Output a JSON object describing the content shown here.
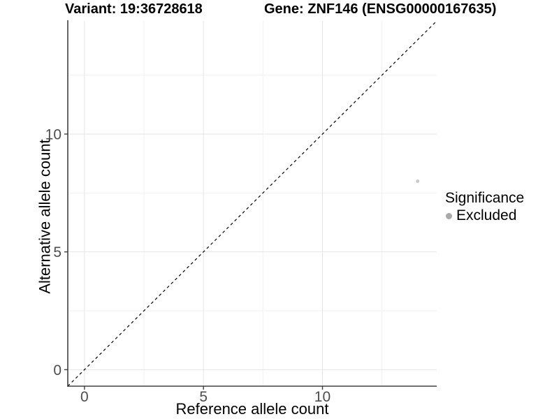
{
  "header": {
    "variant_title": "Variant: 19:36728618",
    "gene_title": "Gene: ZNF146 (ENSG00000167635)"
  },
  "chart_data": {
    "type": "scatter",
    "title": "Variant: 19:36728618   Gene: ZNF146 (ENSG00000167635)",
    "xlabel": "Reference allele count",
    "ylabel": "Alternative allele count",
    "xlim": [
      -0.7,
      14.8
    ],
    "ylim": [
      -0.7,
      14.8
    ],
    "xticks": [
      0,
      5,
      10
    ],
    "yticks": [
      0,
      5,
      10
    ],
    "minor_xticks": [
      2.5,
      7.5,
      12.5
    ],
    "minor_yticks": [
      2.5,
      7.5,
      12.5
    ],
    "grid": true,
    "points": [
      {
        "x": 14,
        "y": 8,
        "series": "Excluded"
      }
    ],
    "reference_line": {
      "kind": "identity",
      "style": "dashed"
    },
    "legend": {
      "title": "Significance",
      "position": "right",
      "items": [
        {
          "label": "Excluded",
          "color": "#a9a9a9",
          "marker": "circle"
        }
      ]
    },
    "colors": {
      "point": "#c7c7c7",
      "identity_line": "#000000",
      "axis_line": "#404040",
      "tick_text": "#4d4d4d",
      "grid_major": "#e4e4e4",
      "grid_minor": "#f2f2f2",
      "background": "#ffffff"
    }
  }
}
